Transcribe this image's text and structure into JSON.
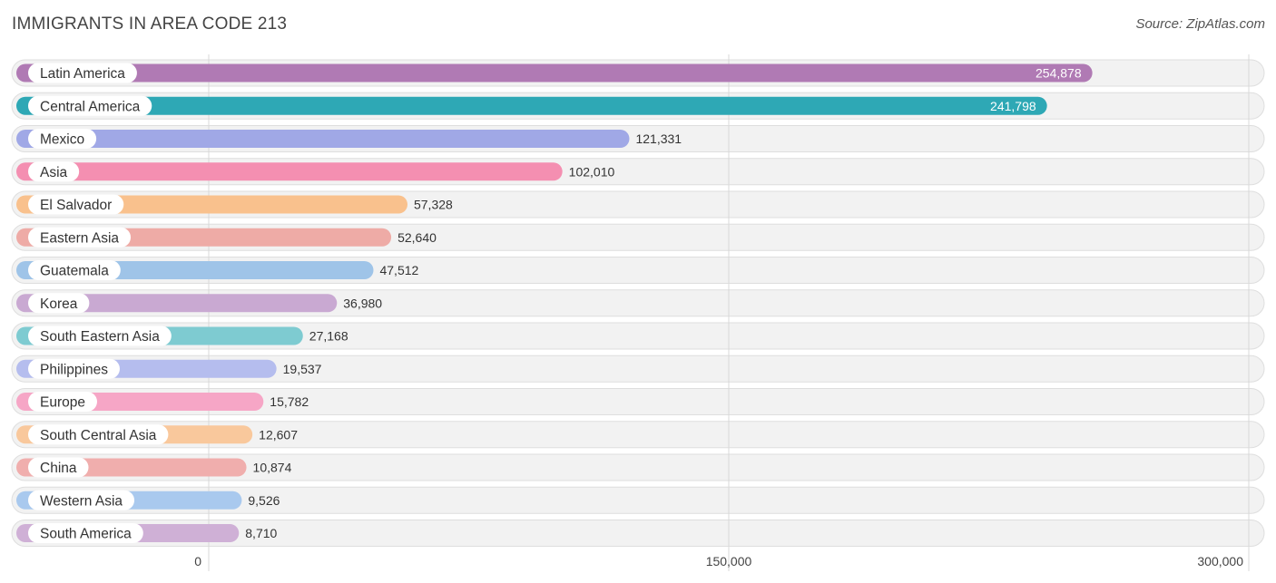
{
  "header": {
    "title": "IMMIGRANTS IN AREA CODE 213",
    "source": "Source: ZipAtlas.com"
  },
  "chart_data": {
    "type": "bar",
    "orientation": "horizontal",
    "title": "IMMIGRANTS IN AREA CODE 213",
    "xlabel": "",
    "ylabel": "",
    "xlim": [
      0,
      300000
    ],
    "ticks": [
      0,
      150000,
      300000
    ],
    "tick_labels": [
      "0",
      "150,000",
      "300,000"
    ],
    "grid": true,
    "categories": [
      "Latin America",
      "Central America",
      "Mexico",
      "Asia",
      "El Salvador",
      "Eastern Asia",
      "Guatemala",
      "Korea",
      "South Eastern Asia",
      "Philippines",
      "Europe",
      "South Central Asia",
      "China",
      "Western Asia",
      "South America"
    ],
    "values": [
      254878,
      241798,
      121331,
      102010,
      57328,
      52640,
      47512,
      36980,
      27168,
      19537,
      15782,
      12607,
      10874,
      9526,
      8710
    ],
    "value_labels": [
      "254,878",
      "241,798",
      "121,331",
      "102,010",
      "57,328",
      "52,640",
      "47,512",
      "36,980",
      "27,168",
      "19,537",
      "15,782",
      "12,607",
      "10,874",
      "9,526",
      "8,710"
    ],
    "colors": [
      "#b07ab4",
      "#2ea8b5",
      "#a0a8e6",
      "#f48fb1",
      "#f9c18d",
      "#eeaba6",
      "#9fc4e8",
      "#c9a9d2",
      "#7ecbd1",
      "#b5bdee",
      "#f6a6c6",
      "#f9c89c",
      "#f0aead",
      "#a9c9ee",
      "#cfb0d6"
    ]
  }
}
